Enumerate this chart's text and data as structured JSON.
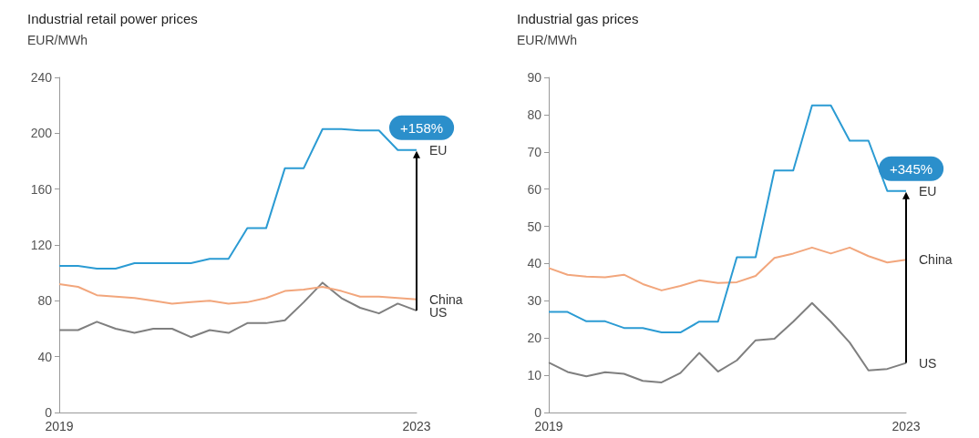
{
  "chart_data": [
    {
      "type": "line",
      "title": "Industrial retail power prices",
      "ylabel": "EUR/MWh",
      "categories": [
        "2019",
        null,
        null,
        null,
        null,
        null,
        null,
        null,
        null,
        null,
        null,
        null,
        null,
        null,
        null,
        null,
        null,
        null,
        null,
        "2023"
      ],
      "series": [
        {
          "name": "EU",
          "color": "#2b9bd3",
          "values": [
            105,
            105,
            103,
            103,
            107,
            107,
            107,
            107,
            110,
            110,
            132,
            132,
            175,
            175,
            203,
            203,
            202,
            202,
            188,
            188
          ]
        },
        {
          "name": "China",
          "color": "#f2a67c",
          "values": [
            92,
            90,
            84,
            83,
            82,
            80,
            78,
            79,
            80,
            78,
            79,
            82,
            87,
            88,
            90,
            87,
            83,
            83,
            82,
            81
          ]
        },
        {
          "name": "US",
          "color": "#7f7f7f",
          "values": [
            59,
            59,
            65,
            60,
            57,
            60,
            60,
            54,
            59,
            57,
            64,
            64,
            66,
            79,
            93,
            82,
            75,
            71,
            78,
            73
          ]
        }
      ],
      "ylim": [
        0,
        240
      ],
      "yticks": [
        0,
        40,
        80,
        120,
        160,
        200,
        240
      ],
      "grid": false,
      "marker": "none",
      "line_style": "solid",
      "annotations": [
        "+158%"
      ]
    },
    {
      "type": "line",
      "title": "Industrial gas prices",
      "ylabel": "EUR/MWh",
      "categories": [
        "2019",
        null,
        null,
        null,
        null,
        null,
        null,
        null,
        null,
        null,
        null,
        null,
        null,
        null,
        null,
        null,
        null,
        null,
        null,
        "2023"
      ],
      "series": [
        {
          "name": "EU",
          "color": "#2b9bd3",
          "values": [
            27,
            27,
            24.5,
            24.5,
            22.7,
            22.7,
            21.5,
            21.5,
            24.4,
            24.4,
            41.7,
            41.7,
            65,
            65,
            82.5,
            82.5,
            73,
            73,
            59.5,
            59.5
          ]
        },
        {
          "name": "China",
          "color": "#f2a67c",
          "values": [
            38.8,
            37,
            36.5,
            36.3,
            37,
            34.5,
            32.8,
            34,
            35.5,
            34.8,
            35,
            36.7,
            41.5,
            42.7,
            44.3,
            42.7,
            44.3,
            42,
            40.3,
            41
          ]
        },
        {
          "name": "US",
          "color": "#7f7f7f",
          "values": [
            13.4,
            10.9,
            9.7,
            10.8,
            10.4,
            8.5,
            8.1,
            10.6,
            16,
            11,
            14,
            19.4,
            19.8,
            24.4,
            29.4,
            24.4,
            18.8,
            11.3,
            11.7,
            13.3
          ]
        }
      ],
      "ylim": [
        0,
        90
      ],
      "yticks": [
        0,
        10,
        20,
        30,
        40,
        50,
        60,
        70,
        80,
        90
      ],
      "grid": false,
      "marker": "none",
      "line_style": "solid",
      "annotations": [
        "+345%"
      ]
    }
  ]
}
